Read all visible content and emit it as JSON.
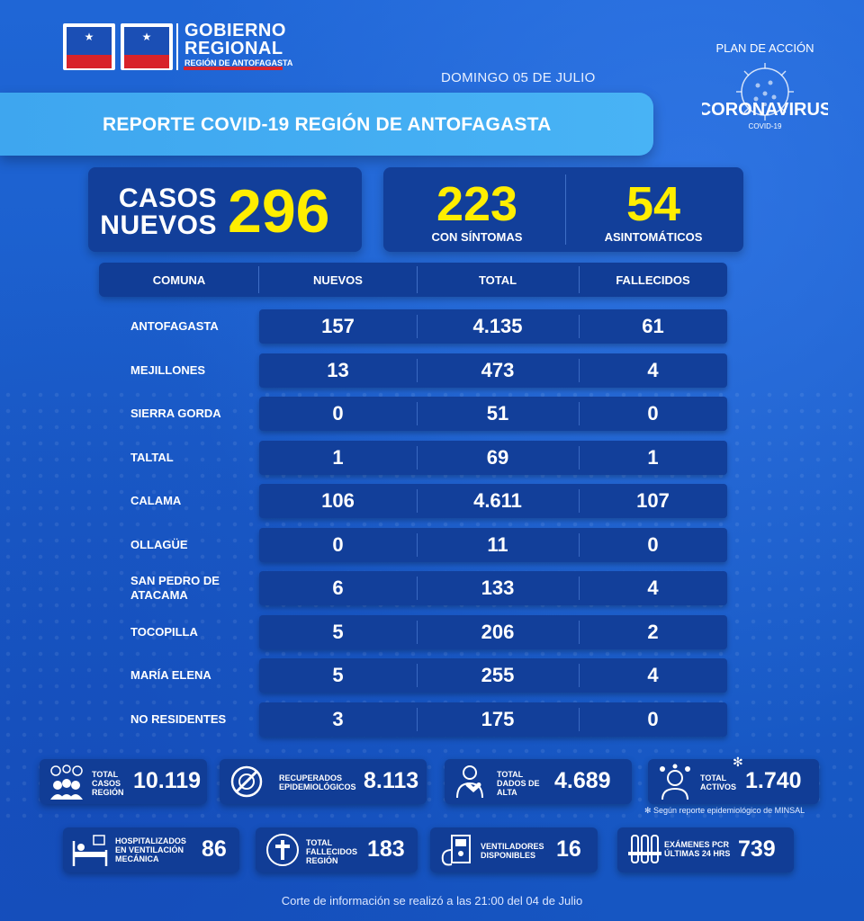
{
  "header": {
    "logo1_text": "GORE Antofagasta",
    "logo2_text": "Gobierno de Chile",
    "gob_line1": "GOBIERNO",
    "gob_line2": "REGIONAL",
    "gob_line3": "REGIÓN DE ANTOFAGASTA",
    "date": "DOMINGO 05 DE JULIO",
    "title": "REPORTE COVID-19 REGIÓN DE ANTOFAGASTA"
  },
  "badge": {
    "top": "PLAN DE ACCIÓN",
    "main": "CORONAVIRUS",
    "sub": "COVID-19"
  },
  "summary": {
    "casos_line1": "CASOS",
    "casos_line2": "NUEVOS",
    "casos_value": "296",
    "sintomas_value": "223",
    "sintomas_label": "CON SÍNTOMAS",
    "asint_value": "54",
    "asint_label": "ASINTOMÁTICOS"
  },
  "table": {
    "headers": [
      "COMUNA",
      "NUEVOS",
      "TOTAL",
      "FALLECIDOS"
    ],
    "rows": [
      {
        "comuna": "ANTOFAGASTA",
        "nuevos": "157",
        "total": "4.135",
        "fallecidos": "61"
      },
      {
        "comuna": "MEJILLONES",
        "nuevos": "13",
        "total": "473",
        "fallecidos": "4"
      },
      {
        "comuna": "SIERRA GORDA",
        "nuevos": "0",
        "total": "51",
        "fallecidos": "0"
      },
      {
        "comuna": "TALTAL",
        "nuevos": "1",
        "total": "69",
        "fallecidos": "1"
      },
      {
        "comuna": "CALAMA",
        "nuevos": "106",
        "total": "4.611",
        "fallecidos": "107"
      },
      {
        "comuna": "OLLAGÜE",
        "nuevos": "0",
        "total": "11",
        "fallecidos": "0"
      },
      {
        "comuna": "SAN PEDRO DE\nATACAMA",
        "nuevos": "6",
        "total": "133",
        "fallecidos": "4"
      },
      {
        "comuna": "TOCOPILLA",
        "nuevos": "5",
        "total": "206",
        "fallecidos": "2"
      },
      {
        "comuna": "MARÍA ELENA",
        "nuevos": "5",
        "total": "255",
        "fallecidos": "4"
      },
      {
        "comuna": "NO RESIDENTES",
        "nuevos": "3",
        "total": "175",
        "fallecidos": "0"
      }
    ]
  },
  "stats": {
    "total_casos": {
      "label": "TOTAL CASOS REGIÓN",
      "value": "10.119",
      "icon": "people-virus-icon"
    },
    "recuperados": {
      "label": "RECUPERADOS EPIDEMIOLÓGICOS",
      "value": "8.113",
      "icon": "virus-crossed-icon"
    },
    "dados_alta": {
      "label": "TOTAL DADOS DE ALTA",
      "value": "4.689",
      "icon": "patient-heart-icon"
    },
    "activos": {
      "label": "TOTAL ACTIVOS",
      "value": "1.740",
      "icon": "person-virus-icon"
    },
    "hospitalizados": {
      "label": "HOSPITALIZADOS EN VENTILACIÓN MECÁNICA",
      "value": "86",
      "icon": "hospital-bed-icon"
    },
    "fallecidos": {
      "label": "TOTAL FALLECIDOS REGIÓN",
      "value": "183",
      "icon": "cross-icon"
    },
    "ventiladores": {
      "label": "VENTILADORES DISPONIBLES",
      "value": "16",
      "icon": "ventilator-icon"
    },
    "pcr": {
      "label": "EXÁMENES PCR ÚLTIMAS 24 HRS",
      "value": "739",
      "icon": "test-tubes-icon"
    }
  },
  "note": "✻ Según reporte epidemiológico de MINSAL",
  "note_star": "✻",
  "footer": "Corte de información se realizó a las 21:00 del 04 de Julio"
}
